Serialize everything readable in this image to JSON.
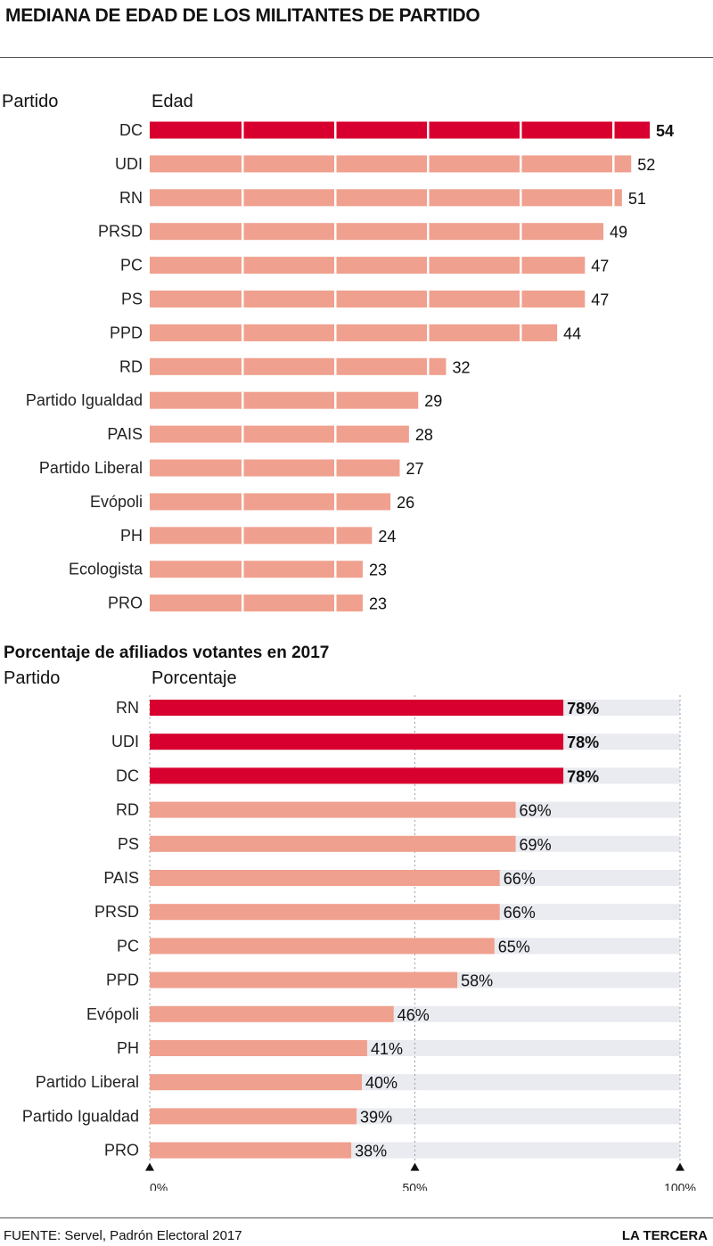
{
  "title": "MEDIANA DE EDAD DE LOS MILITANTES DE PARTIDO",
  "footer": {
    "source": "FUENTE: Servel, Padrón Electoral 2017",
    "brand": "LA TERCERA"
  },
  "colors": {
    "highlight": "#d7002f",
    "normal": "#f0a08e",
    "track": "#e9ebf0"
  },
  "chart_data": [
    {
      "type": "bar",
      "orientation": "horizontal",
      "title": "",
      "xlabel": "Edad",
      "ylabel": "Partido",
      "categories": [
        "DC",
        "UDI",
        "RN",
        "PRSD",
        "PC",
        "PS",
        "PPD",
        "RD",
        "Partido Igualdad",
        "PAIS",
        "Partido Liberal",
        "Evópoli",
        "PH",
        "Ecologista",
        "PRO"
      ],
      "values": [
        54,
        52,
        51,
        49,
        47,
        47,
        44,
        32,
        29,
        28,
        27,
        26,
        24,
        23,
        23
      ],
      "labels": [
        "54",
        "52",
        "51",
        "49",
        "47",
        "47",
        "44",
        "32",
        "29",
        "28",
        "27",
        "26",
        "24",
        "23",
        "23"
      ],
      "highlight": [
        0
      ],
      "xlim": [
        0,
        54
      ],
      "grid": false
    },
    {
      "type": "bar",
      "orientation": "horizontal",
      "title": "Porcentaje de afiliados votantes en 2017",
      "xlabel": "Porcentaje",
      "ylabel": "Partido",
      "categories": [
        "RN",
        "UDI",
        "DC",
        "RD",
        "PS",
        "PAIS",
        "PRSD",
        "PC",
        "PPD",
        "Evópoli",
        "PH",
        "Partido Liberal",
        "Partido Igualdad",
        "PRO"
      ],
      "values": [
        78,
        78,
        78,
        69,
        69,
        66,
        66,
        65,
        58,
        46,
        41,
        40,
        39,
        38
      ],
      "labels": [
        "78%",
        "78%",
        "78%",
        "69%",
        "69%",
        "66%",
        "66%",
        "65%",
        "58%",
        "46%",
        "41%",
        "40%",
        "39%",
        "38%"
      ],
      "highlight": [
        0,
        1,
        2
      ],
      "xlim": [
        0,
        100
      ],
      "ticks": [
        "0%",
        "50%",
        "100%"
      ],
      "grid": true
    }
  ]
}
